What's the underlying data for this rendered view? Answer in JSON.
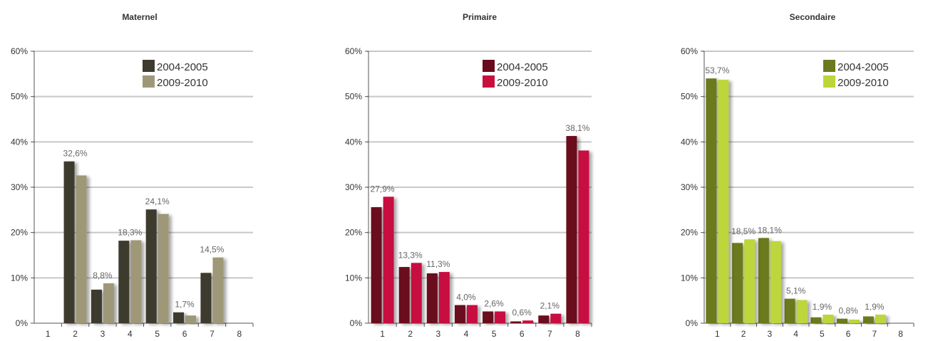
{
  "chart_data": [
    {
      "type": "bar",
      "title": "Maternel",
      "categories": [
        "1",
        "2",
        "3",
        "4",
        "5",
        "6",
        "7",
        "8"
      ],
      "y_ticks": [
        "0%",
        "10%",
        "20%",
        "30%",
        "40%",
        "50%",
        "60%"
      ],
      "ylim": [
        0,
        60
      ],
      "grid": true,
      "legend_position": "top-right",
      "series": [
        {
          "name": "2004-2005",
          "color": "#3d3a2e",
          "values": [
            0,
            35.7,
            7.4,
            18.2,
            25.1,
            2.4,
            11.1,
            0
          ]
        },
        {
          "name": "2009-2010",
          "color": "#9e9878",
          "values": [
            0,
            32.6,
            8.8,
            18.3,
            24.1,
            1.7,
            14.5,
            0
          ]
        }
      ],
      "data_labels": [
        {
          "category": "2",
          "text": "32,6%"
        },
        {
          "category": "3",
          "text": "8,8%"
        },
        {
          "category": "4",
          "text": "18,3%"
        },
        {
          "category": "5",
          "text": "24,1%"
        },
        {
          "category": "6",
          "text": "1,7%"
        },
        {
          "category": "7",
          "text": "14,5%"
        }
      ]
    },
    {
      "type": "bar",
      "title": "Primaire",
      "categories": [
        "1",
        "2",
        "3",
        "4",
        "5",
        "6",
        "7",
        "8"
      ],
      "y_ticks": [
        "0%",
        "10%",
        "20%",
        "30%",
        "40%",
        "50%",
        "60%"
      ],
      "ylim": [
        0,
        60
      ],
      "grid": true,
      "legend_position": "top-right",
      "series": [
        {
          "name": "2004-2005",
          "color": "#6b0a1c",
          "values": [
            25.6,
            12.4,
            11.0,
            4.0,
            2.6,
            0.4,
            1.7,
            41.3
          ]
        },
        {
          "name": "2009-2010",
          "color": "#c8103f",
          "values": [
            27.9,
            13.3,
            11.3,
            4.0,
            2.6,
            0.6,
            2.1,
            38.1
          ]
        }
      ],
      "data_labels": [
        {
          "category": "1",
          "text": "27,9%"
        },
        {
          "category": "2",
          "text": "13,3%"
        },
        {
          "category": "3",
          "text": "11,3%"
        },
        {
          "category": "4",
          "text": "4,0%"
        },
        {
          "category": "5",
          "text": "2,6%"
        },
        {
          "category": "6",
          "text": "0,6%"
        },
        {
          "category": "7",
          "text": "2,1%"
        },
        {
          "category": "8",
          "text": "38,1%"
        }
      ]
    },
    {
      "type": "bar",
      "title": "Secondaire",
      "categories": [
        "1",
        "2",
        "3",
        "4",
        "5",
        "6",
        "7",
        "8"
      ],
      "y_ticks": [
        "0%",
        "10%",
        "20%",
        "30%",
        "40%",
        "50%",
        "60%"
      ],
      "ylim": [
        0,
        60
      ],
      "grid": true,
      "legend_position": "top-right",
      "series": [
        {
          "name": "2004-2005",
          "color": "#6a7a1e",
          "values": [
            54.0,
            17.7,
            18.8,
            5.4,
            1.3,
            1.0,
            1.5,
            0
          ]
        },
        {
          "name": "2009-2010",
          "color": "#bcd63a",
          "values": [
            53.7,
            18.5,
            18.1,
            5.1,
            1.9,
            0.8,
            1.9,
            0
          ]
        }
      ],
      "data_labels": [
        {
          "category": "1",
          "text": "53,7%"
        },
        {
          "category": "2",
          "text": "18,5%"
        },
        {
          "category": "3",
          "text": "18,1%"
        },
        {
          "category": "4",
          "text": "5,1%"
        },
        {
          "category": "5",
          "text": "1,9%"
        },
        {
          "category": "6",
          "text": "0,8%"
        },
        {
          "category": "7",
          "text": "1,9%"
        }
      ]
    }
  ]
}
